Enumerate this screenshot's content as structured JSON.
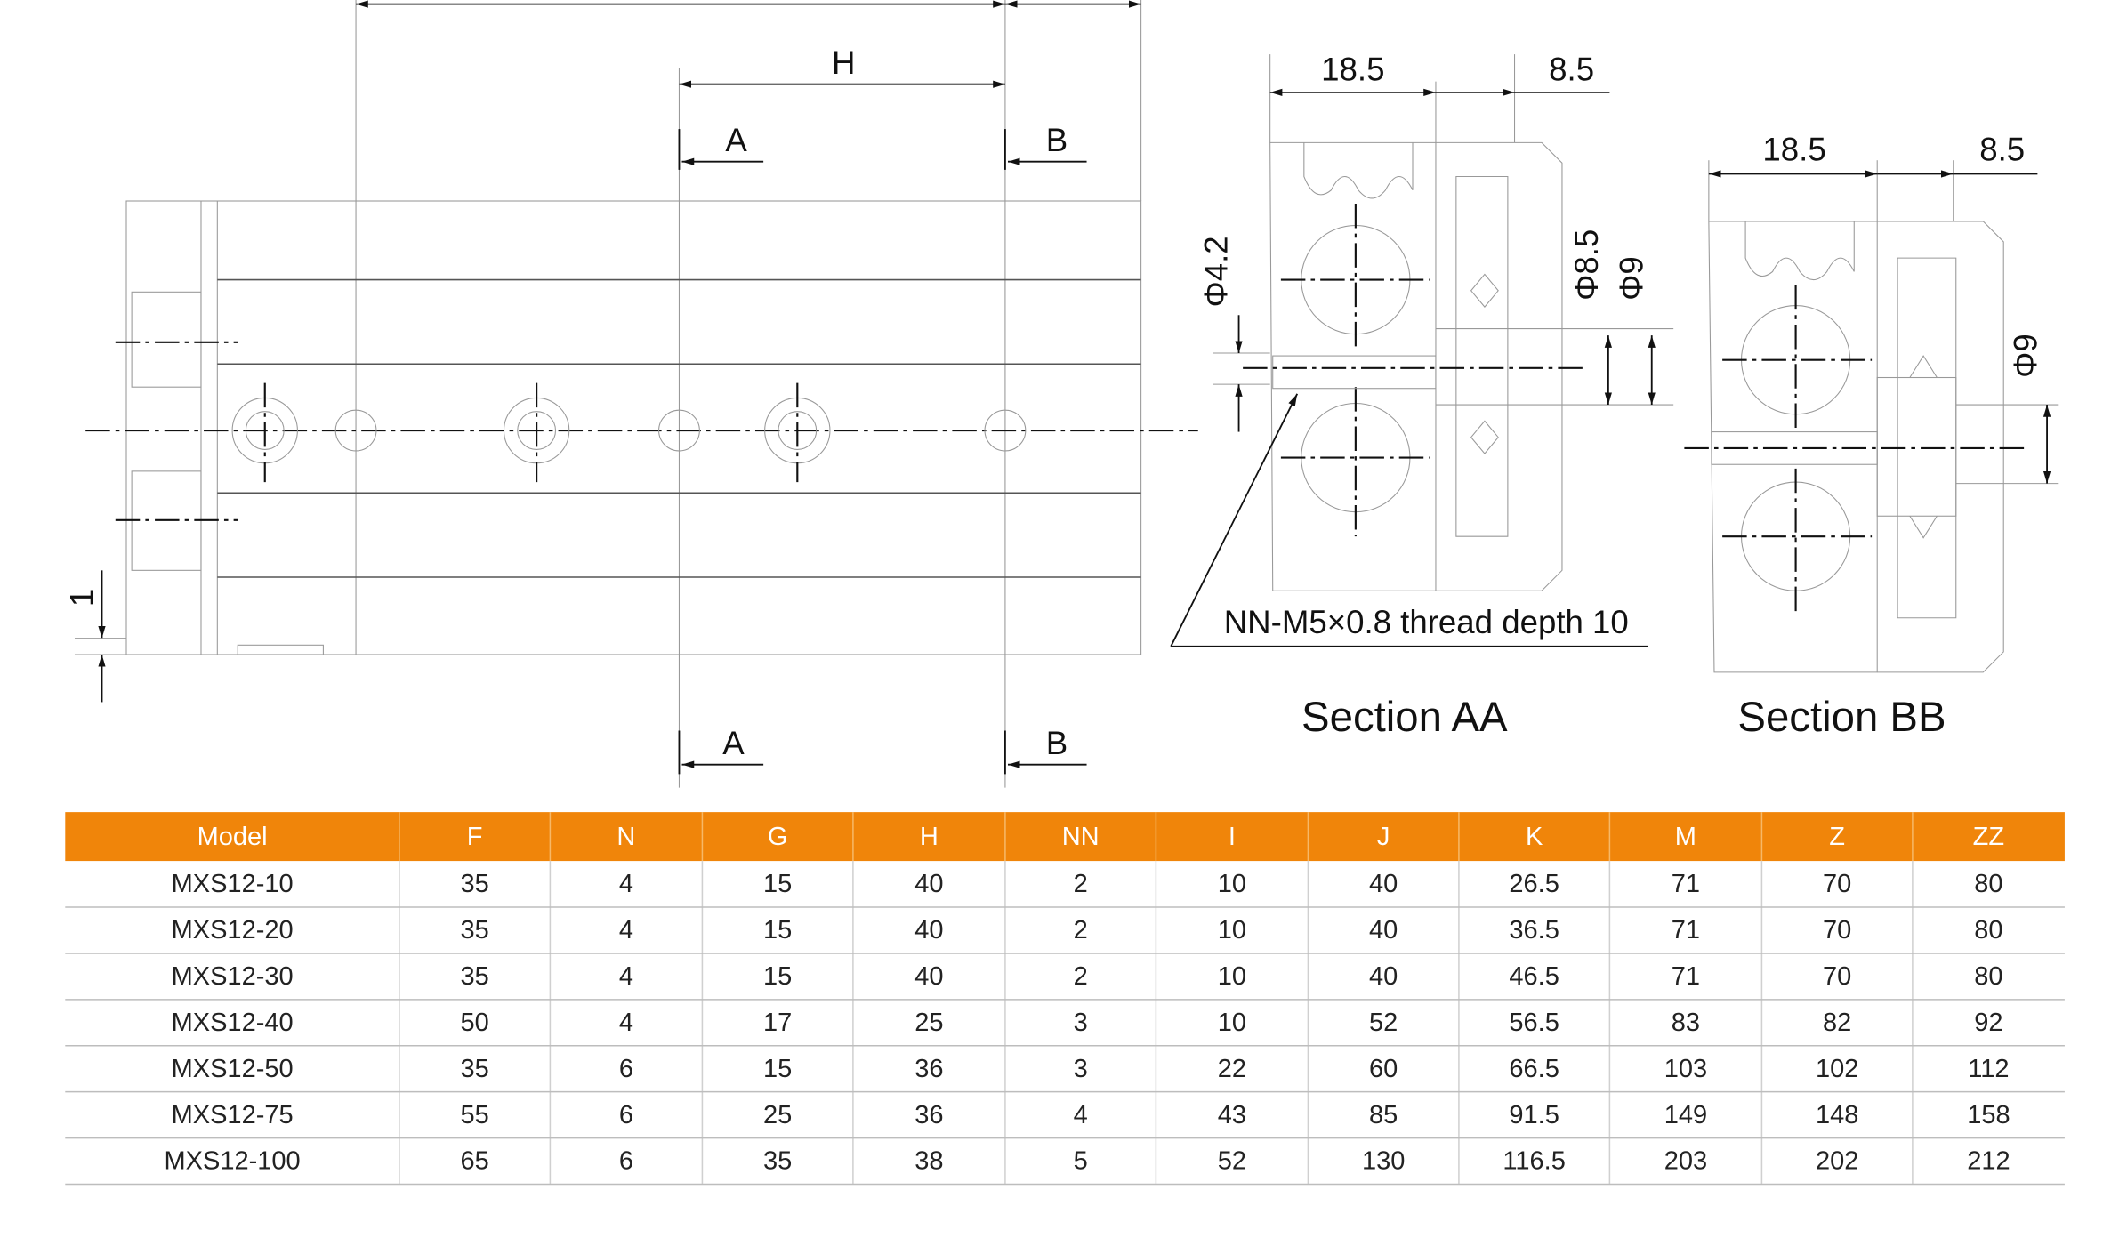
{
  "drawing": {
    "front_view": {
      "dim_h": "H",
      "section_a_top": "A",
      "section_b_top": "B",
      "section_a_bottom": "A",
      "section_b_bottom": "B",
      "dim_1": "1"
    },
    "section_aa": {
      "dim_left": "18.5",
      "dim_right": "8.5",
      "dia_1": "Φ4.2",
      "dia_2": "Φ8.5",
      "dia_3": "Φ9",
      "note": "NN-M5×0.8 thread depth 10",
      "title": "Section AA"
    },
    "section_bb": {
      "dim_left": "18.5",
      "dim_right": "8.5",
      "dia": "Φ9",
      "title": "Section BB"
    }
  },
  "table": {
    "headers": [
      "Model",
      "F",
      "N",
      "G",
      "H",
      "NN",
      "I",
      "J",
      "K",
      "M",
      "Z",
      "ZZ"
    ],
    "rows": [
      [
        "MXS12-10",
        35,
        4,
        15,
        40,
        2,
        10,
        40,
        26.5,
        71,
        70,
        80
      ],
      [
        "MXS12-20",
        35,
        4,
        15,
        40,
        2,
        10,
        40,
        36.5,
        71,
        70,
        80
      ],
      [
        "MXS12-30",
        35,
        4,
        15,
        40,
        2,
        10,
        40,
        46.5,
        71,
        70,
        80
      ],
      [
        "MXS12-40",
        50,
        4,
        17,
        25,
        3,
        10,
        52,
        56.5,
        83,
        82,
        92
      ],
      [
        "MXS12-50",
        35,
        6,
        15,
        36,
        3,
        22,
        60,
        66.5,
        103,
        102,
        112
      ],
      [
        "MXS12-75",
        55,
        6,
        25,
        36,
        4,
        43,
        85,
        91.5,
        149,
        148,
        158
      ],
      [
        "MXS12-100",
        65,
        6,
        35,
        38,
        5,
        52,
        130,
        116.5,
        203,
        202,
        212
      ]
    ]
  }
}
